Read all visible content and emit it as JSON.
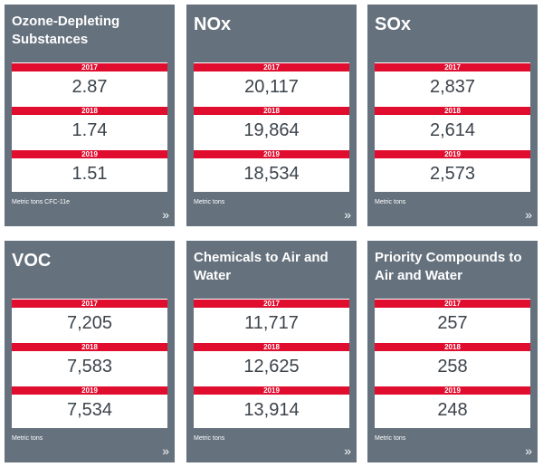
{
  "cards": [
    {
      "title": "Ozone-Depleting Substances",
      "unit": "Metric tons CFC-11e",
      "rows": [
        {
          "year": "2017",
          "value": "2.87"
        },
        {
          "year": "2018",
          "value": "1.74"
        },
        {
          "year": "2019",
          "value": "1.51"
        }
      ]
    },
    {
      "title": "NOx",
      "unit": "Metric tons",
      "rows": [
        {
          "year": "2017",
          "value": "20,117"
        },
        {
          "year": "2018",
          "value": "19,864"
        },
        {
          "year": "2019",
          "value": "18,534"
        }
      ]
    },
    {
      "title": "SOx",
      "unit": "Metric tons",
      "rows": [
        {
          "year": "2017",
          "value": "2,837"
        },
        {
          "year": "2018",
          "value": "2,614"
        },
        {
          "year": "2019",
          "value": "2,573"
        }
      ]
    },
    {
      "title": "VOC",
      "unit": "Metric tons",
      "rows": [
        {
          "year": "2017",
          "value": "7,205"
        },
        {
          "year": "2018",
          "value": "7,583"
        },
        {
          "year": "2019",
          "value": "7,534"
        }
      ]
    },
    {
      "title": "Chemicals to Air and Water",
      "unit": "Metric tons",
      "rows": [
        {
          "year": "2017",
          "value": "11,717"
        },
        {
          "year": "2018",
          "value": "12,625"
        },
        {
          "year": "2019",
          "value": "13,914"
        }
      ]
    },
    {
      "title": "Priority Compounds to Air and Water",
      "unit": "Metric tons",
      "rows": [
        {
          "year": "2017",
          "value": "257"
        },
        {
          "year": "2018",
          "value": "258"
        },
        {
          "year": "2019",
          "value": "248"
        }
      ]
    }
  ],
  "chevron_glyph": "»",
  "colors": {
    "card_bg": "#65717d",
    "year_bar": "#e10d2e",
    "value_text": "#3b434b"
  }
}
